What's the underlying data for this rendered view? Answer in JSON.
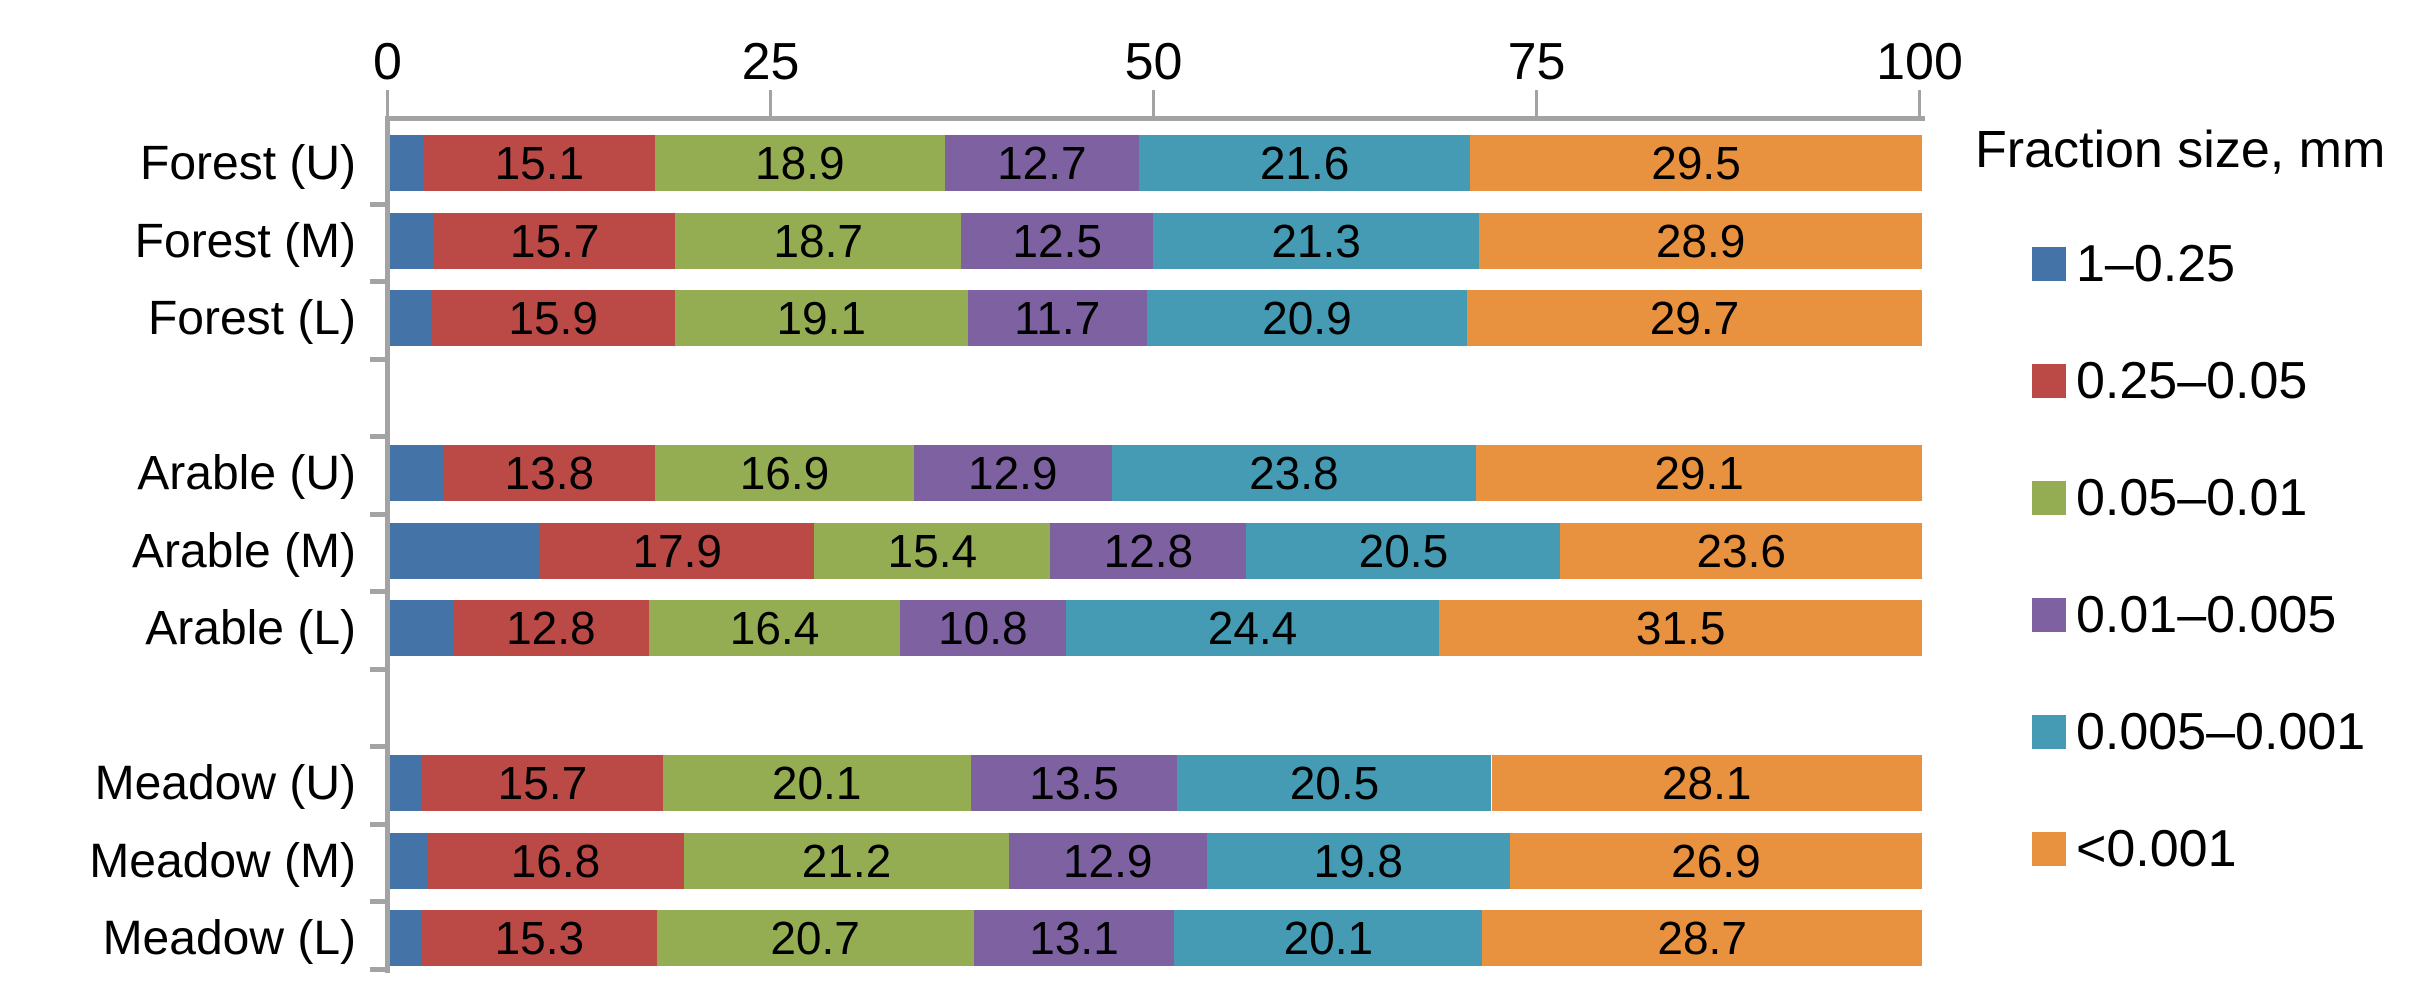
{
  "chart_data": {
    "type": "bar",
    "orientation": "horizontal",
    "stacked": true,
    "title": "",
    "xlabel": "",
    "ylabel": "",
    "x_axis": {
      "position": "top",
      "range": [
        0,
        100
      ],
      "ticks": [
        0,
        25,
        50,
        75,
        100
      ]
    },
    "grid": false,
    "categories": [
      "Forest (U)",
      "Forest (M)",
      "Forest (L)",
      "Arable (U)",
      "Arable (M)",
      "Arable (L)",
      "Meadow (U)",
      "Meadow (M)",
      "Meadow (L)"
    ],
    "category_groups": [
      [
        "Forest (U)",
        "Forest (M)",
        "Forest (L)"
      ],
      [
        "Arable (U)",
        "Arable (M)",
        "Arable (L)"
      ],
      [
        "Meadow (U)",
        "Meadow (M)",
        "Meadow (L)"
      ]
    ],
    "series": [
      {
        "name": "1–0.25",
        "color": "#4473A7",
        "labels_shown": false,
        "values": [
          2.2,
          2.9,
          2.7,
          3.5,
          9.8,
          4.1,
          2.1,
          2.4,
          2.1
        ]
      },
      {
        "name": "0.25–0.05",
        "color": "#BB4A47",
        "labels_shown": true,
        "values": [
          15.1,
          15.7,
          15.9,
          13.8,
          17.9,
          12.8,
          15.7,
          16.8,
          15.3
        ]
      },
      {
        "name": "0.05–0.01",
        "color": "#94AD52",
        "labels_shown": true,
        "values": [
          18.9,
          18.7,
          19.1,
          16.9,
          15.4,
          16.4,
          20.1,
          21.2,
          20.7
        ]
      },
      {
        "name": "0.01–0.005",
        "color": "#7D61A1",
        "labels_shown": true,
        "values": [
          12.7,
          12.5,
          11.7,
          12.9,
          12.8,
          10.8,
          13.5,
          12.9,
          13.1
        ]
      },
      {
        "name": "0.005–0.001",
        "color": "#449BB3",
        "labels_shown": true,
        "values": [
          21.6,
          21.3,
          20.9,
          23.8,
          20.5,
          24.4,
          20.5,
          19.8,
          20.1
        ]
      },
      {
        "name": "<0.001",
        "color": "#E8913E",
        "labels_shown": true,
        "values": [
          29.5,
          28.9,
          29.7,
          29.1,
          23.6,
          31.5,
          28.1,
          26.9,
          28.7
        ]
      }
    ],
    "legend": {
      "title": "Fraction size, mm",
      "position": "right"
    },
    "axis_color": "#a3a3a3"
  }
}
